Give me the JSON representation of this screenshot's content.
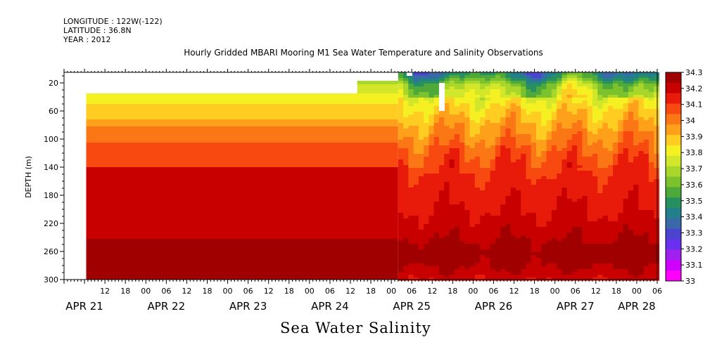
{
  "meta": {
    "longitude": "LONGITUDE : 122W(-122)",
    "latitude": "LATITUDE : 36.8N",
    "year": "YEAR : 2012"
  },
  "chart_data": {
    "type": "heatmap",
    "title": "Hourly Gridded MBARI Mooring M1 Sea Water Temperature and Salinity Observations",
    "xlabel": "Sea Water Salinity",
    "ylabel": "DEPTH (m)",
    "y_axis": {
      "range": [
        300,
        5
      ],
      "inverted": true,
      "ticks": [
        20,
        60,
        100,
        140,
        180,
        220,
        260,
        300
      ]
    },
    "x_axis": {
      "range_hours": [
        0,
        174
      ],
      "hour_tick_labels": [
        {
          "h": 12,
          "label": "12"
        },
        {
          "h": 18,
          "label": "18"
        },
        {
          "h": 24,
          "label": "00"
        },
        {
          "h": 30,
          "label": "06"
        },
        {
          "h": 36,
          "label": "12"
        },
        {
          "h": 42,
          "label": "18"
        },
        {
          "h": 48,
          "label": "00"
        },
        {
          "h": 54,
          "label": "06"
        },
        {
          "h": 60,
          "label": "12"
        },
        {
          "h": 66,
          "label": "18"
        },
        {
          "h": 72,
          "label": "00"
        },
        {
          "h": 78,
          "label": "06"
        },
        {
          "h": 84,
          "label": "12"
        },
        {
          "h": 90,
          "label": "18"
        },
        {
          "h": 96,
          "label": "00"
        },
        {
          "h": 102,
          "label": "06"
        },
        {
          "h": 108,
          "label": "12"
        },
        {
          "h": 114,
          "label": "18"
        },
        {
          "h": 120,
          "label": "00"
        },
        {
          "h": 126,
          "label": "06"
        },
        {
          "h": 132,
          "label": "12"
        },
        {
          "h": 138,
          "label": "18"
        },
        {
          "h": 144,
          "label": "00"
        },
        {
          "h": 150,
          "label": "06"
        },
        {
          "h": 156,
          "label": "12"
        },
        {
          "h": 162,
          "label": "18"
        },
        {
          "h": 168,
          "label": "00"
        },
        {
          "h": 174,
          "label": "06"
        }
      ],
      "date_labels": [
        {
          "h": 6,
          "label": "APR 21"
        },
        {
          "h": 30,
          "label": "APR 22"
        },
        {
          "h": 54,
          "label": "APR 23"
        },
        {
          "h": 78,
          "label": "APR 24"
        },
        {
          "h": 102,
          "label": "APR 25"
        },
        {
          "h": 126,
          "label": "APR 26"
        },
        {
          "h": 150,
          "label": "APR 27"
        },
        {
          "h": 168,
          "label": "APR 28"
        }
      ]
    },
    "colorbar": {
      "labels": [
        "34.3",
        "34.2",
        "34.1",
        "34",
        "33.9",
        "33.8",
        "33.7",
        "33.6",
        "33.5",
        "33.4",
        "33.3",
        "33.2",
        "33.1",
        "33"
      ],
      "colors": [
        "#a00000",
        "#c80000",
        "#e81a0a",
        "#f84a10",
        "#fb7614",
        "#ffa01a",
        "#ffcc22",
        "#f5f022",
        "#d2e62a",
        "#a8d62a",
        "#7cc22c",
        "#4ea83a",
        "#279060",
        "#23808a",
        "#3a68a8",
        "#4a44d0",
        "#6a30f0",
        "#a020f0",
        "#d000ff",
        "#ff00ff"
      ]
    },
    "uniform_period": {
      "hour_range": [
        0,
        98
      ],
      "layers": [
        {
          "depth_top": 35,
          "depth_bottom": 42,
          "salinity": 33.79
        },
        {
          "depth_top": 42,
          "depth_bottom": 50,
          "salinity": 33.83
        },
        {
          "depth_top": 50,
          "depth_bottom": 60,
          "salinity": 33.87
        },
        {
          "depth_top": 60,
          "depth_bottom": 72,
          "salinity": 33.91
        },
        {
          "depth_top": 72,
          "depth_bottom": 82,
          "salinity": 33.95
        },
        {
          "depth_top": 82,
          "depth_bottom": 95,
          "salinity": 33.99
        },
        {
          "depth_top": 95,
          "depth_bottom": 105,
          "salinity": 34.02
        },
        {
          "depth_top": 105,
          "depth_bottom": 122,
          "salinity": 34.05
        },
        {
          "depth_top": 122,
          "depth_bottom": 140,
          "salinity": 34.08
        },
        {
          "depth_top": 140,
          "depth_bottom": 220,
          "salinity": 34.17
        },
        {
          "depth_top": 220,
          "depth_bottom": 242,
          "salinity": 34.22
        },
        {
          "depth_top": 242,
          "depth_bottom": 300,
          "salinity": 34.26
        }
      ]
    },
    "profile_stations": [
      {
        "depth": 5,
        "salinity": 33.5
      },
      {
        "depth": 10,
        "salinity": 33.55
      },
      {
        "depth": 15,
        "salinity": 33.62
      },
      {
        "depth": 20,
        "salinity": 33.7
      },
      {
        "depth": 30,
        "salinity": 33.75
      },
      {
        "depth": 40,
        "salinity": 33.8
      },
      {
        "depth": 50,
        "salinity": 33.84
      },
      {
        "depth": 60,
        "salinity": 33.88
      },
      {
        "depth": 70,
        "salinity": 33.91
      },
      {
        "depth": 80,
        "salinity": 33.94
      },
      {
        "depth": 90,
        "salinity": 33.97
      },
      {
        "depth": 100,
        "salinity": 34.0
      },
      {
        "depth": 110,
        "salinity": 34.03
      },
      {
        "depth": 120,
        "salinity": 34.06
      },
      {
        "depth": 130,
        "salinity": 34.08
      },
      {
        "depth": 140,
        "salinity": 34.1
      },
      {
        "depth": 160,
        "salinity": 34.13
      },
      {
        "depth": 180,
        "salinity": 34.15
      },
      {
        "depth": 200,
        "salinity": 34.17
      },
      {
        "depth": 220,
        "salinity": 34.2
      },
      {
        "depth": 240,
        "salinity": 34.23
      },
      {
        "depth": 260,
        "salinity": 34.27
      },
      {
        "depth": 280,
        "salinity": 34.24
      },
      {
        "depth": 300,
        "salinity": 34.18
      }
    ]
  }
}
